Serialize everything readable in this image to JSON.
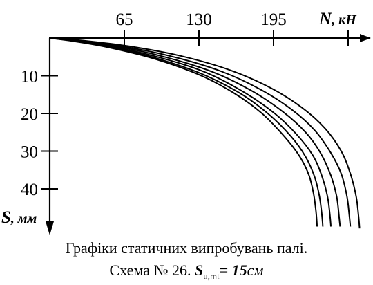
{
  "chart_data": {
    "type": "line",
    "x_axis": {
      "label_symbol": "N",
      "label_unit": ", кН",
      "ticks": [
        65,
        130,
        195
      ],
      "range": [
        0,
        260
      ],
      "position": "top"
    },
    "y_axis": {
      "label_symbol": "S",
      "label_unit": ", мм",
      "ticks": [
        10,
        20,
        30,
        40
      ],
      "range": [
        0,
        50
      ],
      "direction": "down"
    },
    "grid": false,
    "series": [
      {
        "points": [
          [
            0,
            0
          ],
          [
            20,
            0.8
          ],
          [
            50,
            2.4
          ],
          [
            90,
            5.4
          ],
          [
            130,
            9.7
          ],
          [
            160,
            14.5
          ],
          [
            185,
            20.0
          ],
          [
            205,
            26.3
          ],
          [
            218,
            31.5
          ],
          [
            226,
            36.5
          ],
          [
            230,
            41.5
          ],
          [
            232,
            46.0
          ],
          [
            233,
            50.0
          ]
        ]
      },
      {
        "points": [
          [
            0,
            0
          ],
          [
            20,
            0.7
          ],
          [
            50,
            2.2
          ],
          [
            90,
            5.1
          ],
          [
            130,
            9.2
          ],
          [
            165,
            14.5
          ],
          [
            190,
            20.0
          ],
          [
            210,
            26.0
          ],
          [
            223,
            31.5
          ],
          [
            231,
            37.0
          ],
          [
            235,
            42.0
          ],
          [
            237,
            46.5
          ],
          [
            238,
            50.0
          ]
        ]
      },
      {
        "points": [
          [
            0,
            0
          ],
          [
            20,
            0.7
          ],
          [
            55,
            2.3
          ],
          [
            95,
            5.1
          ],
          [
            135,
            9.0
          ],
          [
            170,
            14.5
          ],
          [
            196,
            20.0
          ],
          [
            215,
            25.5
          ],
          [
            229,
            31.0
          ],
          [
            237,
            36.5
          ],
          [
            242,
            42.0
          ],
          [
            244,
            46.5
          ],
          [
            245,
            50.0
          ]
        ]
      },
      {
        "points": [
          [
            0,
            0
          ],
          [
            25,
            0.8
          ],
          [
            60,
            2.3
          ],
          [
            100,
            5.0
          ],
          [
            142,
            9.0
          ],
          [
            176,
            14.0
          ],
          [
            203,
            19.5
          ],
          [
            223,
            25.0
          ],
          [
            236,
            30.5
          ],
          [
            245,
            36.5
          ],
          [
            250,
            42.0
          ],
          [
            252,
            47.0
          ],
          [
            253,
            50.0
          ]
        ]
      },
      {
        "points": [
          [
            0,
            0
          ],
          [
            25,
            0.7
          ],
          [
            65,
            2.3
          ],
          [
            108,
            5.0
          ],
          [
            150,
            8.9
          ],
          [
            184,
            13.7
          ],
          [
            211,
            19.0
          ],
          [
            231,
            24.5
          ],
          [
            245,
            30.5
          ],
          [
            254,
            36.0
          ],
          [
            259,
            42.0
          ],
          [
            261,
            47.0
          ],
          [
            262,
            50.0
          ]
        ]
      },
      {
        "points": [
          [
            0,
            0
          ],
          [
            30,
            0.7
          ],
          [
            70,
            2.2
          ],
          [
            115,
            4.8
          ],
          [
            158,
            8.6
          ],
          [
            193,
            13.3
          ],
          [
            220,
            18.5
          ],
          [
            240,
            24.0
          ],
          [
            254,
            30.0
          ],
          [
            262,
            36.0
          ],
          [
            267,
            42.0
          ],
          [
            269,
            47.0
          ],
          [
            270,
            50.5
          ]
        ]
      }
    ]
  },
  "caption": {
    "line1": "Графіки статичних випробувань палі.",
    "line2_prefix": "Схема № 26. ",
    "line2_symbol": "S",
    "line2_subscript": "u,mt",
    "line2_eq": "= ",
    "line2_value": "15",
    "line2_unit": "см"
  }
}
